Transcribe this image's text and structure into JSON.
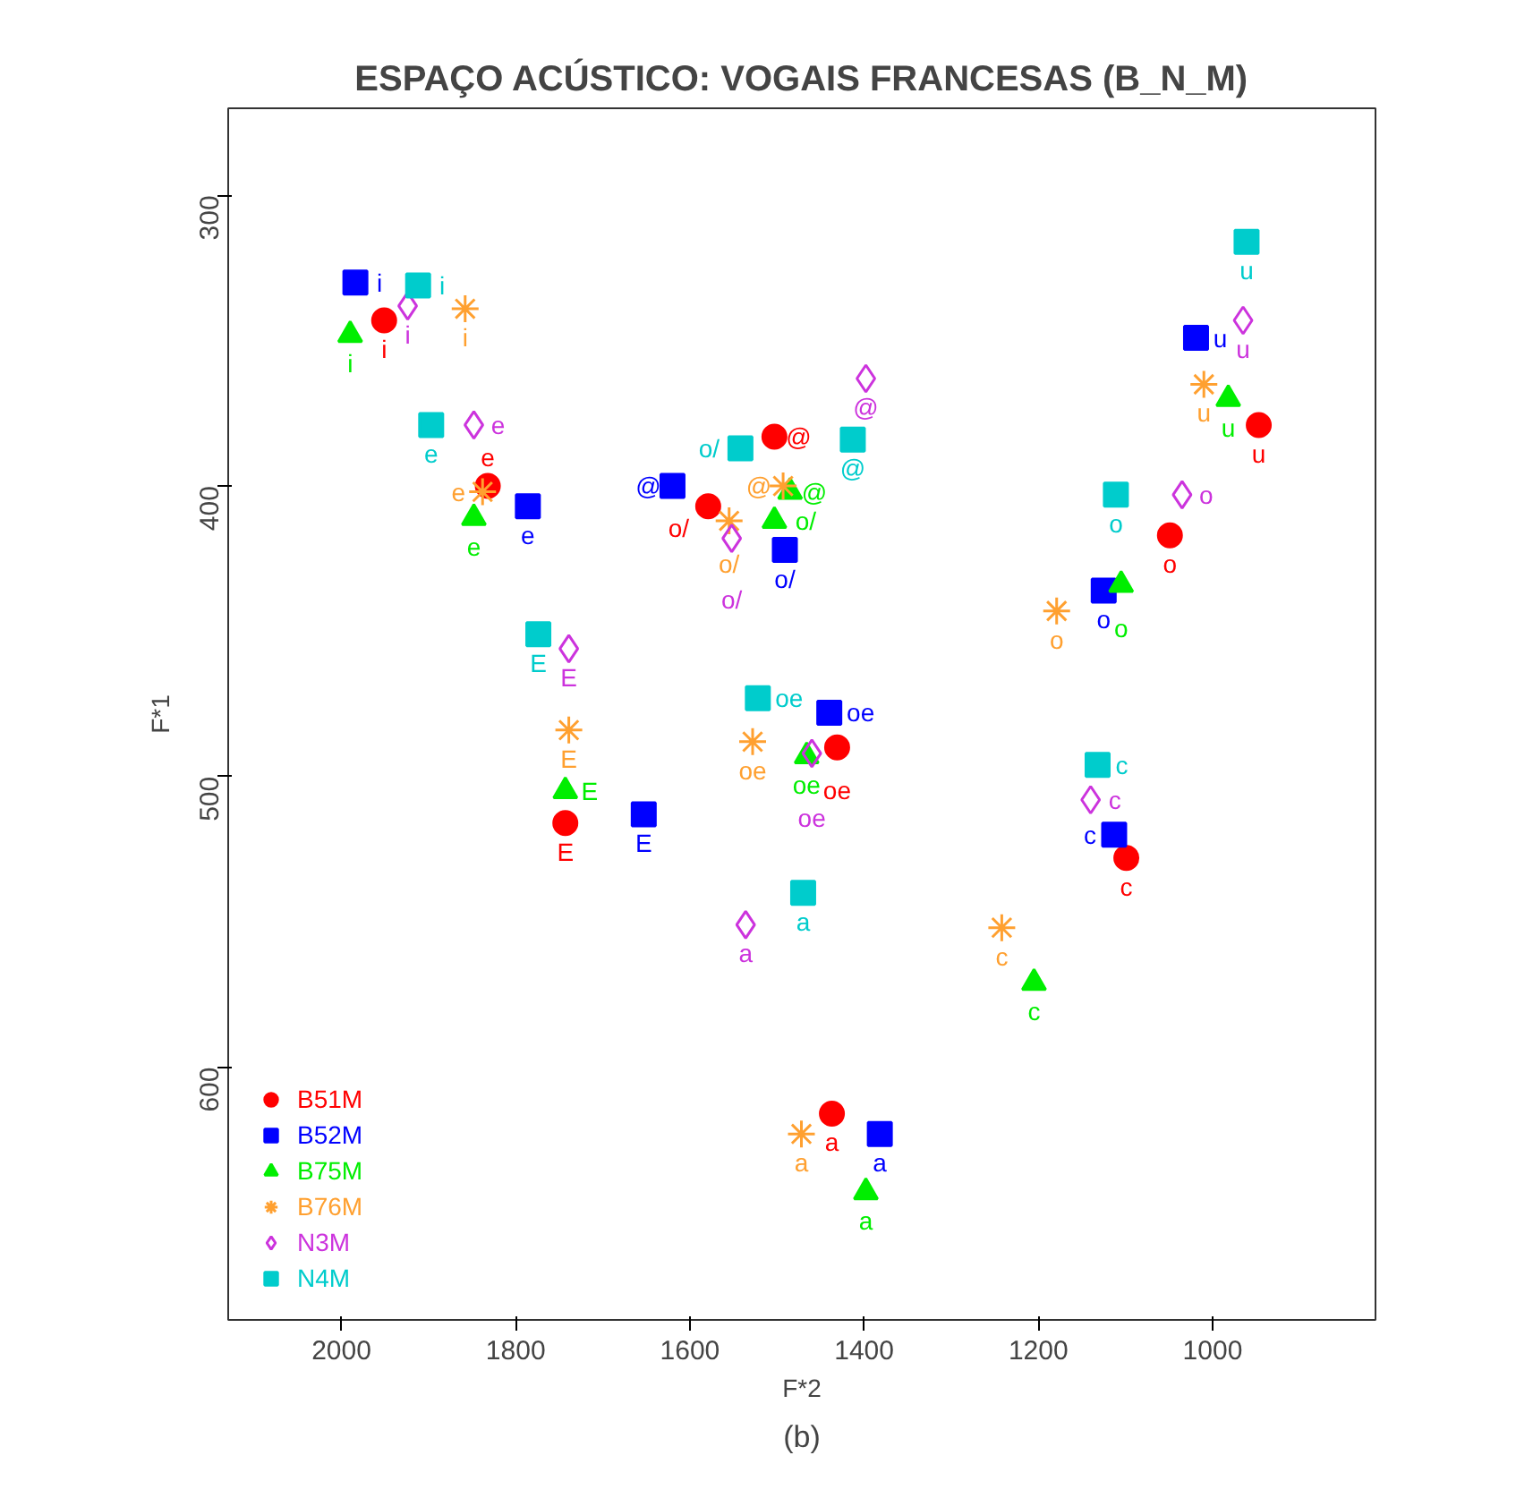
{
  "chart_data": {
    "type": "scatter",
    "title": "ESPAÇO ACÚSTICO: VOGAIS FRANCESAS (B_N_M)",
    "xlabel": "F*2",
    "ylabel": "F*1",
    "xlim": [
      2130,
      813
    ],
    "ylim": [
      687,
      270
    ],
    "xticks": [
      2000,
      1800,
      1600,
      1400,
      1200,
      1000
    ],
    "yticks": [
      300,
      400,
      500,
      600
    ],
    "grid": false,
    "legend": "bottom left",
    "annotations": [
      "(b)"
    ],
    "series": [
      {
        "name": "B51M",
        "color": "#ff0000",
        "marker": "circle",
        "x": [
          1951,
          1832,
          1743,
          1437,
          1503,
          1579,
          1431,
          1049,
          1099,
          947
        ],
        "values": [
          343,
          400,
          516,
          616,
          383,
          407,
          490,
          417,
          528,
          379
        ],
        "value_labels": [
          "i",
          "e",
          "E",
          "a",
          "@",
          "o/",
          "oe",
          "o",
          "c",
          "u"
        ]
      },
      {
        "name": "B52M",
        "color": "#0000ff",
        "marker": "square",
        "x": [
          1984,
          1786,
          1653,
          1382,
          1620,
          1491,
          1440,
          1125,
          1113,
          1019
        ],
        "values": [
          330,
          407,
          513,
          623,
          400,
          422,
          478,
          436,
          520,
          349
        ],
        "value_labels": [
          "i",
          "e",
          "E",
          "a",
          "@",
          "o/",
          "oe",
          "o",
          "c",
          "u"
        ]
      },
      {
        "name": "B75M",
        "color": "#00ee00",
        "marker": "triangle",
        "x": [
          1990,
          1848,
          1743,
          1398,
          1485,
          1503,
          1466,
          1105,
          1205,
          982
        ],
        "values": [
          348,
          411,
          505,
          643,
          402,
          412,
          493,
          434,
          571,
          370
        ],
        "value_labels": [
          "i",
          "e",
          "E",
          "a",
          "@",
          "o/",
          "oe",
          "o",
          "c",
          "u"
        ]
      },
      {
        "name": "B76M",
        "color": "#ffa030",
        "marker": "cross",
        "x": [
          1858,
          1838,
          1739,
          1472,
          1493,
          1555,
          1528,
          1179,
          1242,
          1010
        ],
        "values": [
          339,
          402,
          484,
          623,
          400,
          412,
          488,
          443,
          552,
          365
        ],
        "value_labels": [
          "i",
          "e",
          "E",
          "a",
          "@",
          "o/",
          "oe",
          "o",
          "c",
          "u"
        ]
      },
      {
        "name": "N3M",
        "color": "#cc33dd",
        "marker": "diamond",
        "x": [
          1924,
          1848,
          1739,
          1536,
          1398,
          1552,
          1460,
          1035,
          1140,
          965
        ],
        "values": [
          338,
          379,
          456,
          551,
          363,
          418,
          492,
          403,
          508,
          343
        ],
        "value_labels": [
          "i",
          "e",
          "E",
          "a",
          "@",
          "o/",
          "oe",
          "o",
          "c",
          "u"
        ]
      },
      {
        "name": "N4M",
        "color": "#00cccc",
        "marker": "square",
        "x": [
          1912,
          1897,
          1774,
          1470,
          1413,
          1542,
          1522,
          1111,
          1132,
          961
        ],
        "values": [
          331,
          379,
          451,
          540,
          384,
          387,
          473,
          403,
          496,
          316
        ],
        "value_labels": [
          "i",
          "e",
          "E",
          "a",
          "@",
          "o/",
          "oe",
          "o",
          "c",
          "u"
        ]
      }
    ]
  }
}
